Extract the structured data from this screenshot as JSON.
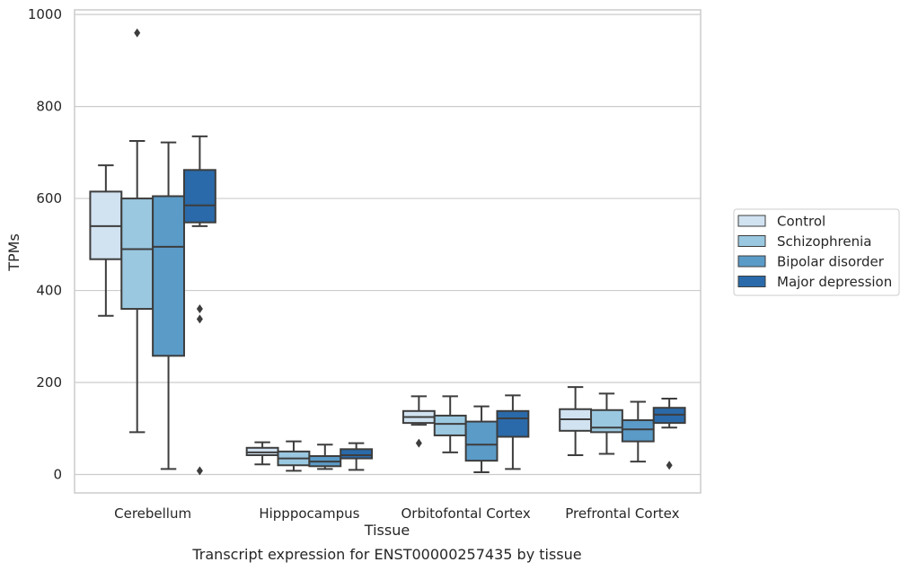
{
  "caption": "Transcript expression for ENST00000257435 by tissue",
  "chart_data": {
    "type": "boxplot",
    "xlabel": "Tissue",
    "ylabel": "TPMs",
    "ylim": [
      -40,
      1010
    ],
    "yticks": [
      0,
      200,
      400,
      600,
      800,
      1000
    ],
    "grid": "horizontal",
    "legend_position": "right, outside plot",
    "categories": [
      "Cerebellum",
      "Hipppocampus",
      "Orbitofontal Cortex",
      "Prefrontal Cortex"
    ],
    "series": [
      {
        "name": "Control",
        "color": "#d1e2f1",
        "boxes": [
          {
            "whisker_low": 345,
            "q1": 468,
            "median": 540,
            "q3": 615,
            "whisker_high": 672,
            "outliers": []
          },
          {
            "whisker_low": 22,
            "q1": 42,
            "median": 48,
            "q3": 58,
            "whisker_high": 70,
            "outliers": []
          },
          {
            "whisker_low": 108,
            "q1": 112,
            "median": 125,
            "q3": 138,
            "whisker_high": 170,
            "outliers": [
              68
            ]
          },
          {
            "whisker_low": 42,
            "q1": 95,
            "median": 120,
            "q3": 142,
            "whisker_high": 190,
            "outliers": []
          }
        ]
      },
      {
        "name": "Schizophrenia",
        "color": "#9ac8e0",
        "boxes": [
          {
            "whisker_low": 92,
            "q1": 360,
            "median": 490,
            "q3": 600,
            "whisker_high": 725,
            "outliers": [
              960
            ]
          },
          {
            "whisker_low": 8,
            "q1": 20,
            "median": 35,
            "q3": 50,
            "whisker_high": 72,
            "outliers": []
          },
          {
            "whisker_low": 48,
            "q1": 85,
            "median": 110,
            "q3": 128,
            "whisker_high": 170,
            "outliers": []
          },
          {
            "whisker_low": 45,
            "q1": 92,
            "median": 102,
            "q3": 140,
            "whisker_high": 176,
            "outliers": []
          }
        ]
      },
      {
        "name": "Bipolar disorder",
        "color": "#5b9bc8",
        "boxes": [
          {
            "whisker_low": 12,
            "q1": 258,
            "median": 495,
            "q3": 605,
            "whisker_high": 722,
            "outliers": []
          },
          {
            "whisker_low": 12,
            "q1": 18,
            "median": 28,
            "q3": 40,
            "whisker_high": 65,
            "outliers": []
          },
          {
            "whisker_low": 5,
            "q1": 30,
            "median": 65,
            "q3": 115,
            "whisker_high": 148,
            "outliers": []
          },
          {
            "whisker_low": 28,
            "q1": 72,
            "median": 98,
            "q3": 118,
            "whisker_high": 158,
            "outliers": []
          }
        ]
      },
      {
        "name": "Major depression",
        "color": "#2a6aaa",
        "boxes": [
          {
            "whisker_low": 540,
            "q1": 548,
            "median": 585,
            "q3": 662,
            "whisker_high": 735,
            "outliers": [
              8,
              338,
              360
            ]
          },
          {
            "whisker_low": 10,
            "q1": 35,
            "median": 42,
            "q3": 55,
            "whisker_high": 68,
            "outliers": []
          },
          {
            "whisker_low": 12,
            "q1": 82,
            "median": 122,
            "q3": 138,
            "whisker_high": 172,
            "outliers": []
          },
          {
            "whisker_low": 102,
            "q1": 112,
            "median": 130,
            "q3": 145,
            "whisker_high": 165,
            "outliers": [
              20
            ]
          }
        ]
      }
    ]
  }
}
